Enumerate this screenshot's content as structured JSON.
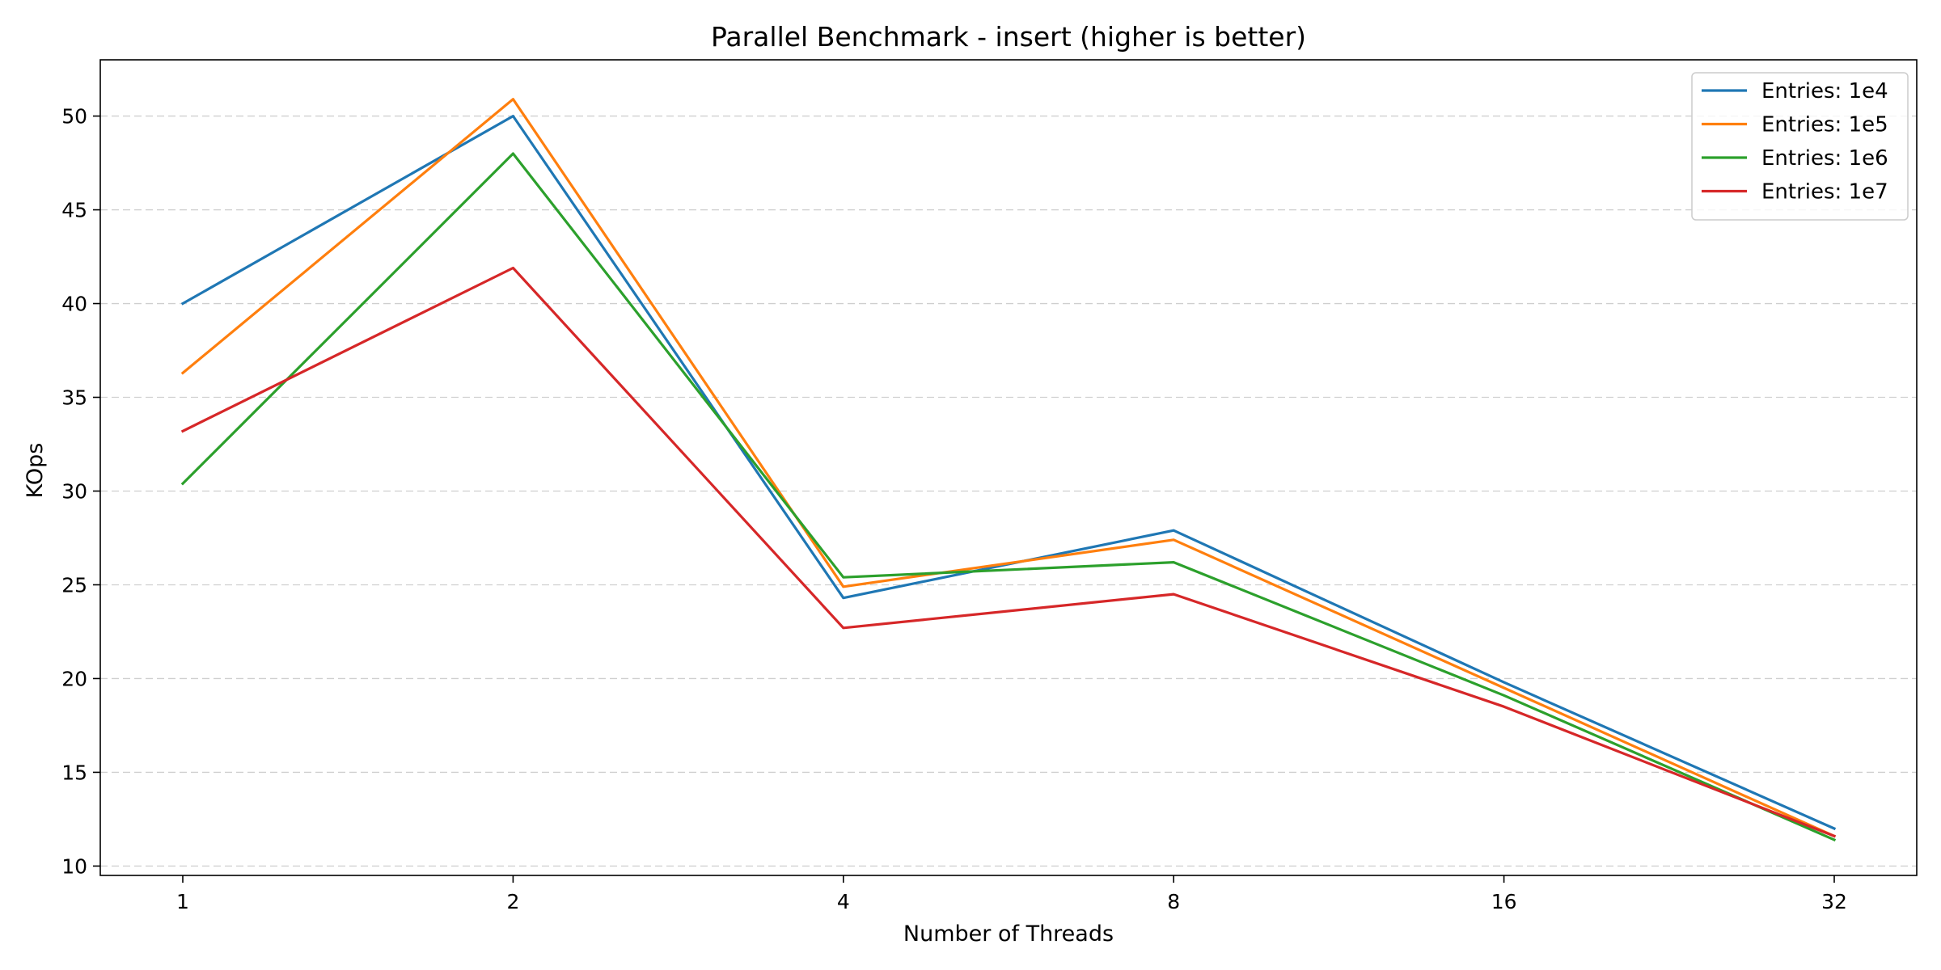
{
  "chart_data": {
    "type": "line",
    "title": "Parallel Benchmark - insert (higher is better)",
    "xlabel": "Number of Threads",
    "ylabel": "KOps",
    "x_scale": "categorical",
    "categories": [
      "1",
      "2",
      "4",
      "8",
      "16",
      "32"
    ],
    "yticks": [
      "10",
      "15",
      "20",
      "25",
      "30",
      "35",
      "40",
      "45",
      "50"
    ],
    "ylim": [
      9.5,
      53
    ],
    "grid": {
      "y": "dashed",
      "x": "off"
    },
    "legend_position": "top-right",
    "series": [
      {
        "name": "Entries: 1e4",
        "color": "#1f77b4",
        "values": [
          40.0,
          50.0,
          24.3,
          27.9,
          19.8,
          12.0
        ]
      },
      {
        "name": "Entries: 1e5",
        "color": "#ff7f0e",
        "values": [
          36.3,
          50.9,
          24.9,
          27.4,
          19.5,
          11.6
        ]
      },
      {
        "name": "Entries: 1e6",
        "color": "#2ca02c",
        "values": [
          30.4,
          48.0,
          25.4,
          26.2,
          19.1,
          11.4
        ]
      },
      {
        "name": "Entries: 1e7",
        "color": "#d62728",
        "values": [
          33.2,
          41.9,
          22.7,
          24.5,
          18.5,
          11.6
        ]
      }
    ]
  }
}
